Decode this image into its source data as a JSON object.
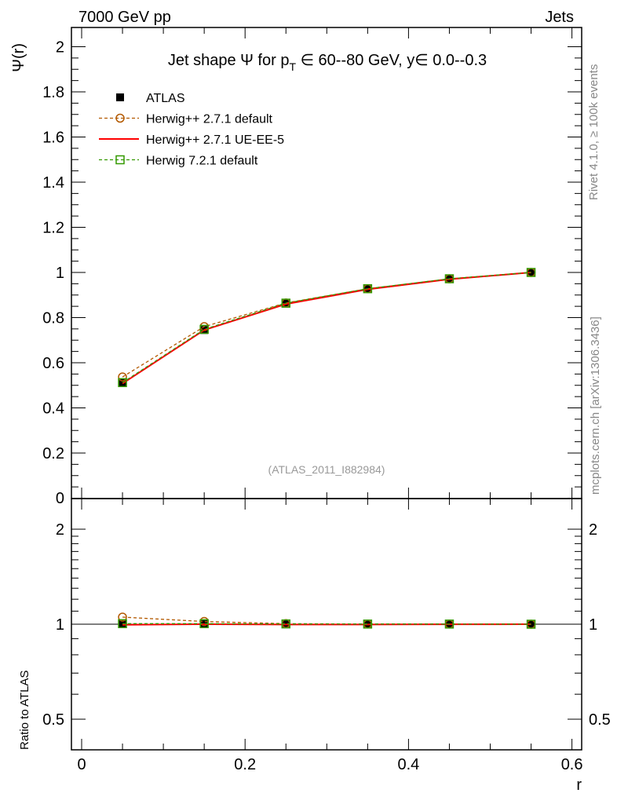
{
  "header": {
    "left": "7000 GeV pp",
    "right": "Jets"
  },
  "side_labels": {
    "rivet": "Rivet 4.1.0, ≥ 100k events",
    "mcplots": "mcplots.cern.ch [arXiv:1306.3436]"
  },
  "chart_data": {
    "type": "line",
    "title": "Jet shape Ψ for p_T ∈ 60--80 GeV, y∈ 0.0--0.3",
    "title_parts": {
      "a": "Jet shape Ψ for p",
      "sub": "T",
      "b": " ∈ 60--80 GeV, y∈ 0.0--0.3"
    },
    "xlabel": "r",
    "ylabel": "Ψ(r)",
    "ratio_ylabel": "Ratio to ATLAS",
    "watermark": "(ATLAS_2011_I882984)",
    "xlim": [
      -0.005,
      0.6
    ],
    "ylim": [
      0,
      2.08
    ],
    "ratio_ylim": [
      0.4,
      2.5
    ],
    "ratio_scale": "log",
    "x_ticks": [
      "0",
      "0.2",
      "0.4",
      "0.6"
    ],
    "y_ticks": [
      "0",
      "0.2",
      "0.4",
      "0.6",
      "0.8",
      "1",
      "1.2",
      "1.4",
      "1.6",
      "1.8",
      "2"
    ],
    "ratio_ticks": [
      "0.5",
      "1",
      "2"
    ],
    "legend_position": "top-left",
    "x": [
      0.05,
      0.15,
      0.25,
      0.35,
      0.45,
      0.55
    ],
    "series": [
      {
        "name": "ATLAS",
        "color": "#000000",
        "style": "points",
        "values": [
          0.51,
          0.745,
          0.862,
          0.927,
          0.971,
          1.0
        ],
        "ratio": [
          1,
          1,
          1,
          1,
          1,
          1
        ]
      },
      {
        "name": "Herwig++ 2.7.1 default",
        "color": "#b35900",
        "style": "dashed-circle",
        "values": [
          0.537,
          0.76,
          0.865,
          0.928,
          0.972,
          1.0
        ],
        "ratio": [
          1.053,
          1.02,
          1.004,
          1.001,
          1.001,
          1.0
        ]
      },
      {
        "name": "Herwig++ 2.7.1 UE-EE-5",
        "color": "#ff0000",
        "style": "solid",
        "values": [
          0.508,
          0.745,
          0.86,
          0.925,
          0.97,
          1.0
        ],
        "ratio": [
          0.996,
          1.0,
          0.998,
          0.998,
          0.999,
          1.0
        ]
      },
      {
        "name": "Herwig 7.2.1 default",
        "color": "#339900",
        "style": "dashed-square",
        "values": [
          0.512,
          0.748,
          0.864,
          0.928,
          0.972,
          1.0
        ],
        "ratio": [
          1.004,
          1.004,
          1.002,
          1.001,
          1.001,
          1.0
        ]
      }
    ]
  }
}
